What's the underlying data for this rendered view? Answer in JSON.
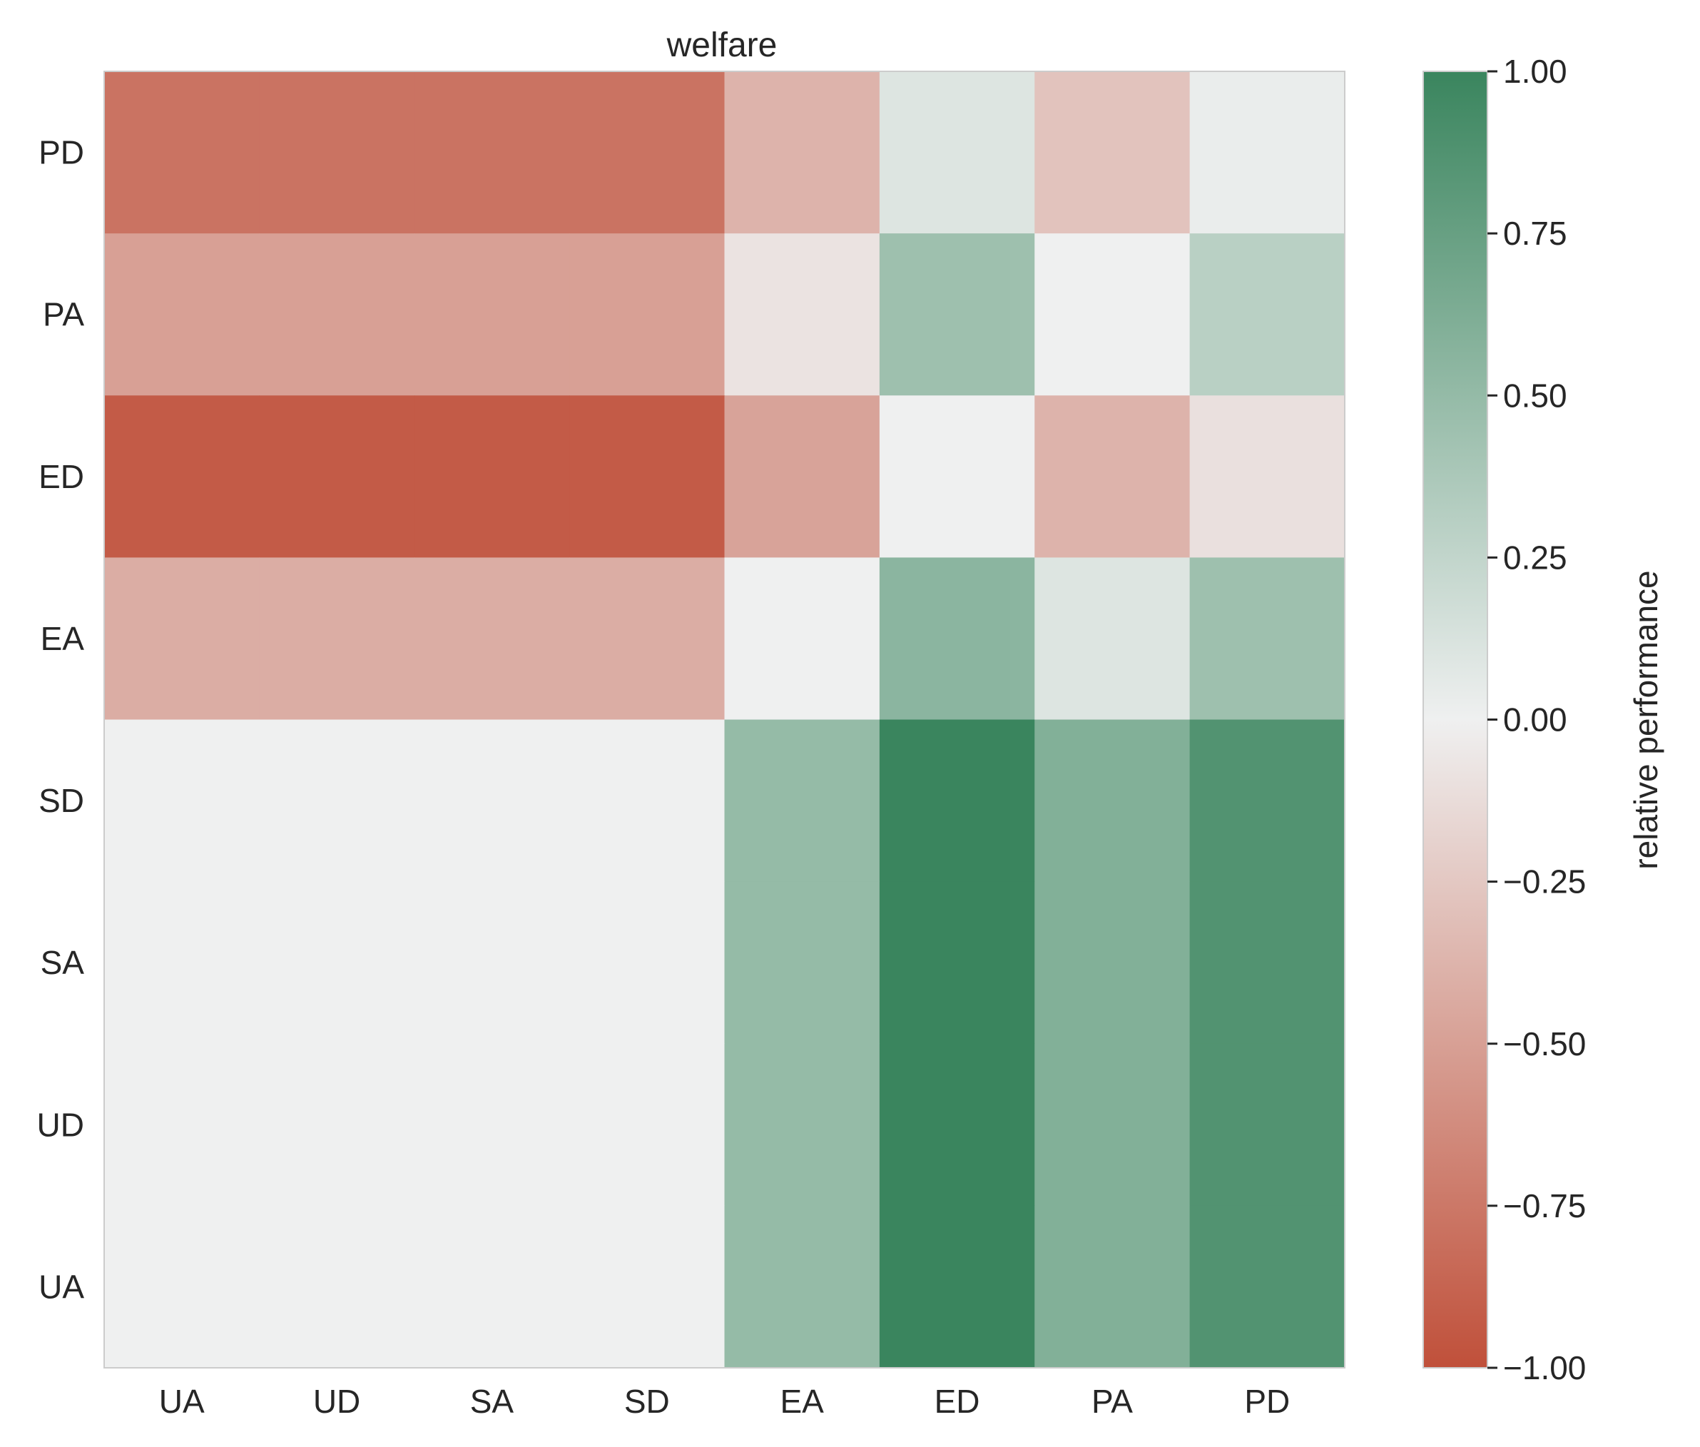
{
  "chart_data": {
    "type": "heatmap",
    "title": "welfare",
    "xlabel": "",
    "ylabel": "",
    "x_categories": [
      "UA",
      "UD",
      "SA",
      "SD",
      "EA",
      "ED",
      "PA",
      "PD"
    ],
    "y_categories_top_to_bottom": [
      "PD",
      "PA",
      "ED",
      "EA",
      "SD",
      "SA",
      "UD",
      "UA"
    ],
    "values": [
      [
        -0.78,
        -0.78,
        -0.78,
        -0.78,
        -0.38,
        0.1,
        -0.28,
        0.03
      ],
      [
        -0.5,
        -0.5,
        -0.5,
        -0.5,
        -0.08,
        0.45,
        0.0,
        0.3
      ],
      [
        -0.93,
        -0.93,
        -0.93,
        -0.93,
        -0.48,
        0.0,
        -0.38,
        -0.1
      ],
      [
        -0.42,
        -0.42,
        -0.42,
        -0.42,
        0.0,
        0.55,
        0.1,
        0.45
      ],
      [
        0.0,
        0.0,
        0.0,
        0.0,
        0.5,
        1.0,
        0.6,
        0.87
      ],
      [
        0.0,
        0.0,
        0.0,
        0.0,
        0.5,
        1.0,
        0.6,
        0.87
      ],
      [
        0.0,
        0.0,
        0.0,
        0.0,
        0.5,
        1.0,
        0.6,
        0.87
      ],
      [
        0.0,
        0.0,
        0.0,
        0.0,
        0.5,
        1.0,
        0.6,
        0.87
      ]
    ],
    "colorbar": {
      "label": "relative performance",
      "range": [
        -1.0,
        1.0
      ],
      "ticks": [
        1.0,
        0.75,
        0.5,
        0.25,
        0.0,
        -0.25,
        -0.5,
        -0.75,
        -1.0
      ],
      "tick_labels": [
        "1.00",
        "0.75",
        "0.50",
        "0.25",
        "0.00",
        "−0.25",
        "−0.50",
        "−0.75",
        "−1.00"
      ],
      "colors": {
        "negative": "#c0503a",
        "zero": "#eff0f0",
        "positive": "#3a855e"
      }
    },
    "grid": false
  }
}
